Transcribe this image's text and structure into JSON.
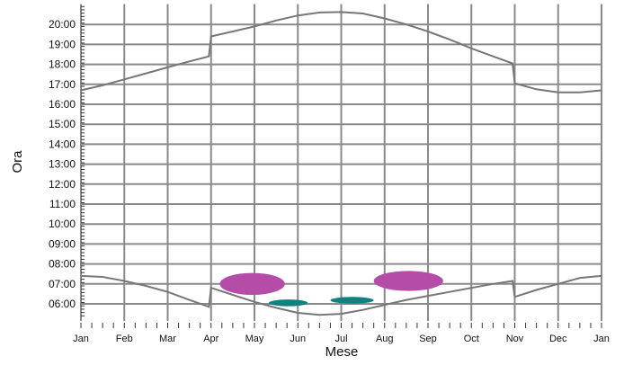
{
  "chart_data": {
    "type": "line",
    "xlabel": "Mese",
    "ylabel": "Ora",
    "x_ticks": [
      "Jan",
      "Feb",
      "Mar",
      "Apr",
      "May",
      "Jun",
      "Jul",
      "Aug",
      "Sep",
      "Oct",
      "Nov",
      "Dec",
      "Jan"
    ],
    "y_ticks": [
      "06:00",
      "07:00",
      "08:00",
      "09:00",
      "10:00",
      "11:00",
      "12:00",
      "13:00",
      "14:00",
      "15:00",
      "16:00",
      "17:00",
      "18:00",
      "19:00",
      "20:00"
    ],
    "ylim": [
      5.3,
      21.0
    ],
    "xlim": [
      0,
      12
    ],
    "grid": true,
    "colors": {
      "curves": "#777777",
      "grid": "#8a8a8a",
      "magenta": "#b44ca8",
      "teal": "#138080"
    },
    "series": [
      {
        "x": [
          0,
          0.5,
          1,
          1.5,
          2,
          2.5,
          2.95,
          3.0,
          3.5,
          4,
          4.5,
          5,
          5.5,
          6,
          6.5,
          7,
          7.5,
          8,
          8.5,
          9,
          9.5,
          9.95,
          10.0,
          10.5,
          11,
          11.5,
          12
        ],
        "y": [
          16.7,
          16.95,
          17.25,
          17.55,
          17.85,
          18.15,
          18.4,
          19.4,
          19.65,
          19.9,
          20.2,
          20.45,
          20.6,
          20.62,
          20.55,
          20.3,
          20.0,
          19.65,
          19.25,
          18.8,
          18.4,
          18.05,
          17.05,
          16.75,
          16.6,
          16.6,
          16.7
        ]
      },
      {
        "x": [
          0,
          0.5,
          1,
          1.5,
          2,
          2.5,
          2.95,
          3.0,
          3.5,
          4,
          4.5,
          5,
          5.5,
          6,
          6.5,
          7,
          7.5,
          8,
          8.5,
          9,
          9.5,
          9.95,
          10.0,
          10.5,
          11,
          11.5,
          12
        ],
        "y": [
          7.4,
          7.35,
          7.15,
          6.9,
          6.6,
          6.2,
          5.85,
          6.8,
          6.45,
          6.1,
          5.8,
          5.55,
          5.45,
          5.5,
          5.7,
          5.95,
          6.2,
          6.4,
          6.6,
          6.8,
          7.0,
          7.15,
          6.35,
          6.7,
          7.0,
          7.3,
          7.4
        ]
      }
    ],
    "regions": [
      {
        "color": "magenta",
        "cx": 3.95,
        "cy": 7.0,
        "rx": 0.75,
        "ry": 0.55
      },
      {
        "color": "magenta",
        "cx": 7.55,
        "cy": 7.15,
        "rx": 0.8,
        "ry": 0.5
      },
      {
        "color": "teal",
        "cx": 4.78,
        "cy": 6.05,
        "rx": 0.45,
        "ry": 0.17
      },
      {
        "color": "teal",
        "cx": 6.25,
        "cy": 6.18,
        "rx": 0.5,
        "ry": 0.17
      }
    ]
  }
}
